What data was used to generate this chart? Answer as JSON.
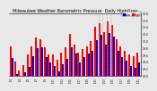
{
  "title": "Milwaukee Weather Barometric Pressure  Daily High/Low",
  "title_fontsize": 3.5,
  "background_color": "#e8e8e8",
  "high_color": "#ff0000",
  "low_color": "#0000cc",
  "legend_high": "High",
  "legend_low": "Low",
  "ylim": [
    29.0,
    30.8
  ],
  "yticks": [
    29.0,
    29.2,
    29.4,
    29.6,
    29.8,
    30.0,
    30.2,
    30.4,
    30.6,
    30.8
  ],
  "ytick_labels": [
    "29.0",
    "29.2",
    "29.4",
    "29.6",
    "29.8",
    "30.0",
    "30.2",
    "30.4",
    "30.6",
    "30.8"
  ],
  "dates": [
    "1/1",
    "1/2",
    "1/3",
    "1/4",
    "1/5",
    "1/6",
    "1/7",
    "1/8",
    "1/9",
    "1/10",
    "1/11",
    "1/12",
    "1/13",
    "1/14",
    "1/15",
    "1/16",
    "1/17",
    "1/18",
    "1/19",
    "1/20",
    "1/21",
    "1/22",
    "1/23",
    "1/24",
    "1/25",
    "1/26",
    "1/27",
    "1/28",
    "1/29",
    "1/30",
    "1/31"
  ],
  "high_values": [
    29.85,
    29.4,
    29.15,
    29.3,
    29.6,
    29.85,
    30.1,
    30.05,
    29.8,
    29.6,
    29.6,
    29.45,
    29.65,
    29.8,
    30.2,
    29.9,
    29.65,
    29.75,
    29.85,
    30.0,
    30.4,
    30.5,
    30.25,
    30.55,
    30.45,
    30.05,
    29.85,
    29.7,
    29.6,
    29.55,
    29.65
  ],
  "low_values": [
    29.5,
    29.05,
    29.0,
    29.08,
    29.25,
    29.55,
    29.78,
    29.82,
    29.52,
    29.38,
    29.28,
    29.12,
    29.32,
    29.48,
    29.82,
    29.62,
    29.38,
    29.52,
    29.62,
    29.72,
    30.02,
    30.18,
    29.88,
    30.22,
    30.12,
    29.72,
    29.52,
    29.42,
    29.28,
    29.22,
    29.38
  ],
  "dashed_vline_x": [
    20.5,
    21.5,
    22.5,
    23.5
  ],
  "grid_color": "#aaaaaa"
}
